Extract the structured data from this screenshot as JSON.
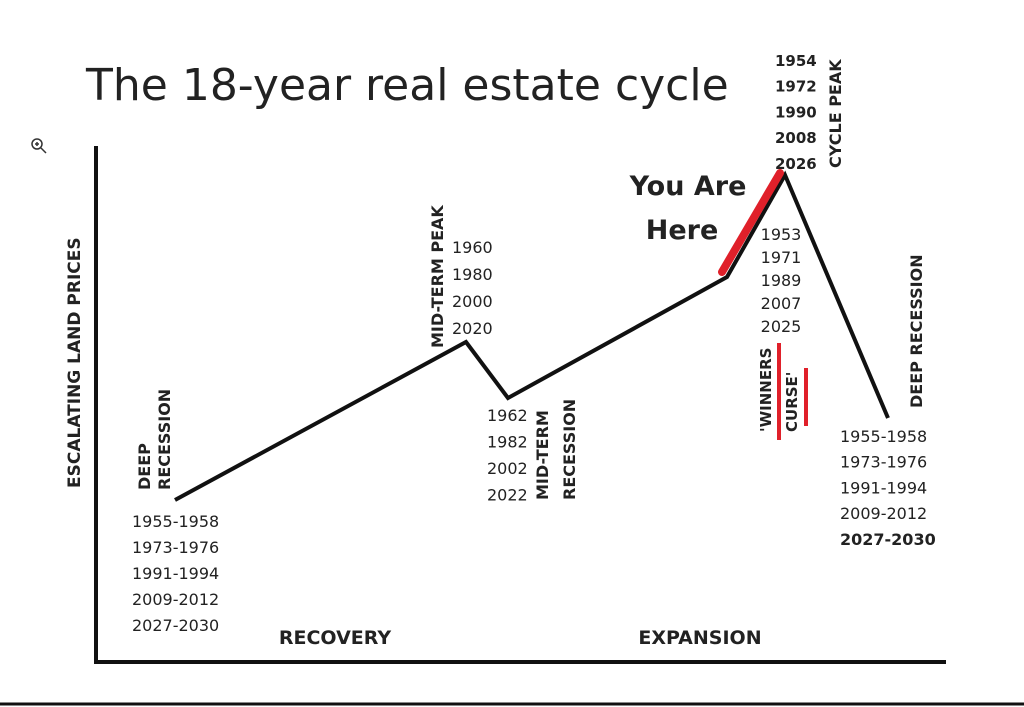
{
  "title": "The 18-year real estate cycle",
  "y_axis_label": "ESCALATING LAND PRICES",
  "phases": [
    "RECOVERY",
    "EXPANSION"
  ],
  "stages": [
    {
      "label_lines": [
        "DEEP",
        "RECESSION"
      ],
      "years": [
        "1955-1958",
        "1973-1976",
        "1991-1994",
        "2009-2012",
        "2027-2030"
      ]
    },
    {
      "label_lines": [
        "MID-TERM PEAK"
      ],
      "years": [
        "1960",
        "1980",
        "2000",
        "2020"
      ]
    },
    {
      "label_lines": [
        "MID-TERM",
        "RECESSION"
      ],
      "years": [
        "1962",
        "1982",
        "2002",
        "2022"
      ]
    },
    {
      "years": [
        "1953",
        "1971",
        "1989",
        "2007",
        "2025"
      ]
    },
    {
      "label_lines": [
        "CYCLE PEAK"
      ],
      "years": [
        "1954",
        "1972",
        "1990",
        "2008",
        "2026"
      ]
    },
    {
      "label_lines": [
        "DEEP RECESSION"
      ],
      "years": [
        "1955-1958",
        "1973-1976",
        "1991-1994",
        "2009-2012",
        "2027-2030"
      ]
    }
  ],
  "annotation_lines": [
    "You Are",
    "Here"
  ],
  "warning_lines": [
    "'WINNERS",
    "CURSE'"
  ]
}
